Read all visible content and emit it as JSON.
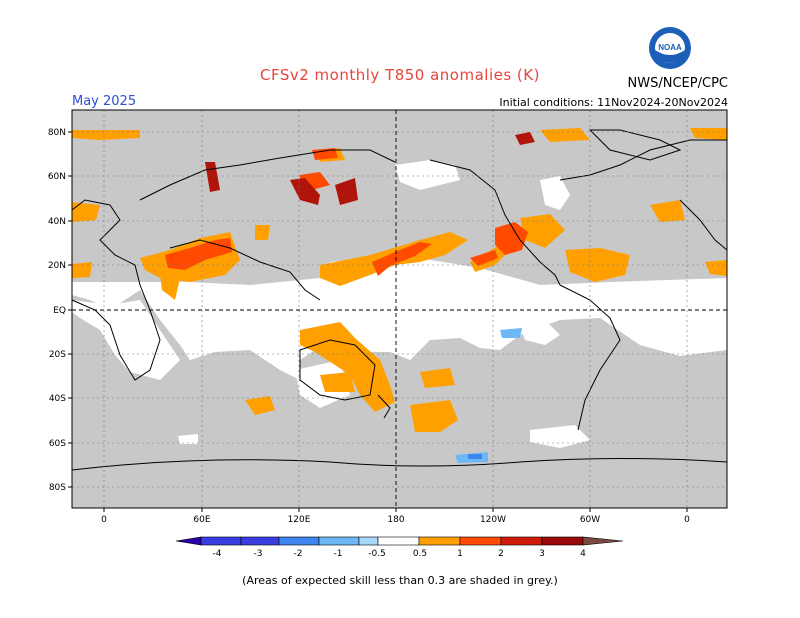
{
  "header": {
    "title": "CFSv2 monthly T850 anomalies (K)",
    "month": "May 2025",
    "initial_conditions": "Initial conditions: 11Nov2024-20Nov2024",
    "agency": "NWS/NCEP/CPC",
    "logo_text": "NOAA"
  },
  "map": {
    "lat_labels": [
      "80N",
      "60N",
      "40N",
      "20N",
      "EQ",
      "20S",
      "40S",
      "60S",
      "80S"
    ],
    "lon_labels": [
      "0",
      "60E",
      "120E",
      "180",
      "120W",
      "60W",
      "0"
    ],
    "grey_meaning": "low-skill"
  },
  "colorbar": {
    "ticks": [
      "-4",
      "-3",
      "-2",
      "-1",
      "-0.5",
      "0.5",
      "1",
      "2",
      "3",
      "4"
    ],
    "colors": [
      "#2b00a8",
      "#3a3ee0",
      "#3f86f0",
      "#6db7f6",
      "#a7d8fb",
      "#ffffff",
      "#ffa000",
      "#ff4a00",
      "#d01a0a",
      "#9a0a0a",
      "#c8a09a",
      "#7a4a40"
    ]
  },
  "footnote": "(Areas of expected skill less than 0.3 are shaded in grey.)"
}
